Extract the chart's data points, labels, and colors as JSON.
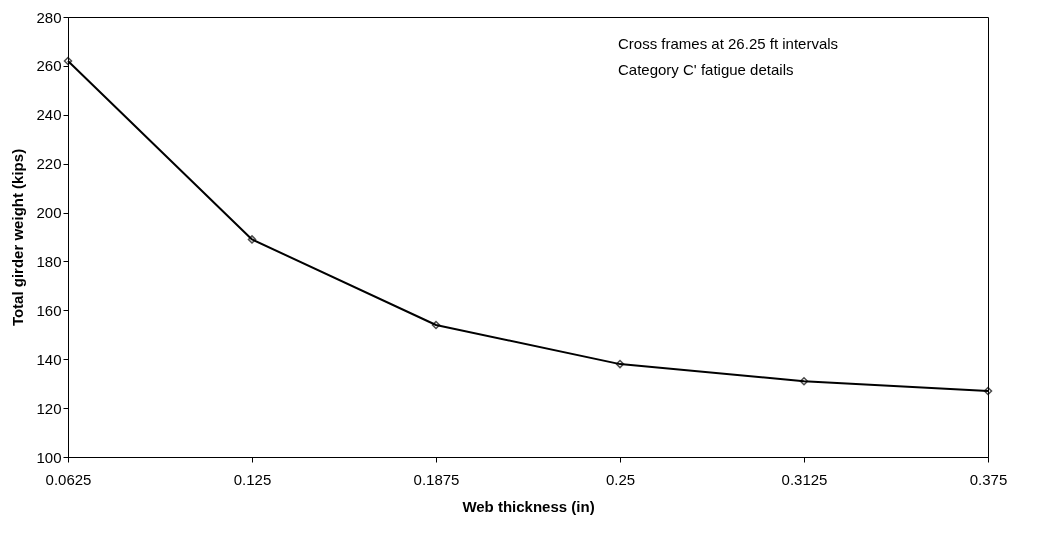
{
  "chart_data": {
    "type": "line",
    "xlabel": "Web thickness (in)",
    "ylabel": "Total girder weight (kips)",
    "annotations": [
      "Cross frames at 26.25 ft intervals",
      "Category C' fatigue details"
    ],
    "x": [
      0.0625,
      0.125,
      0.1875,
      0.25,
      0.3125,
      0.375
    ],
    "series": [
      {
        "color": "#000000",
        "values": [
          262,
          189,
          154,
          138,
          131,
          127
        ]
      }
    ],
    "xlim": [
      0.0625,
      0.375
    ],
    "xticks": [
      0.0625,
      0.125,
      0.1875,
      0.25,
      0.3125,
      0.375
    ],
    "ylim": [
      100,
      280
    ],
    "yticks": [
      100,
      120,
      140,
      160,
      180,
      200,
      220,
      240,
      260,
      280
    ],
    "marker": "diamond",
    "line_style": "solid"
  }
}
